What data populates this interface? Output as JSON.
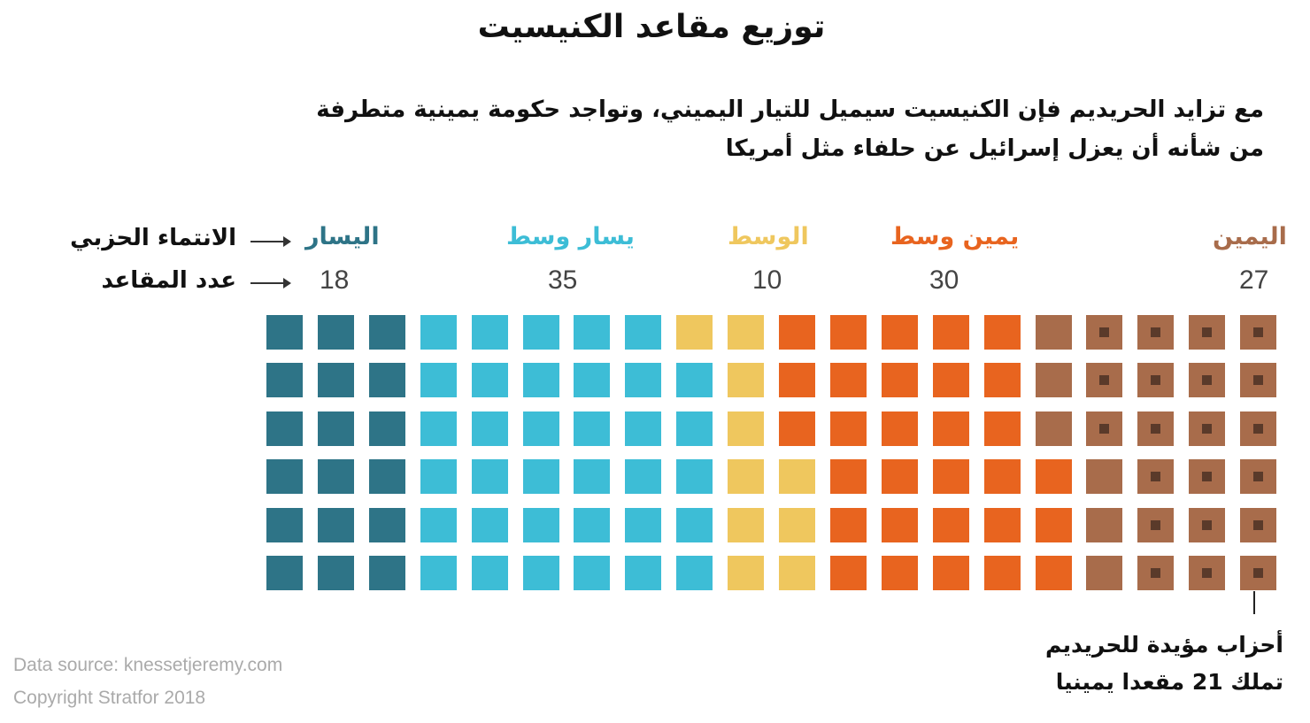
{
  "title": "توزيع مقاعد الكنيسيت",
  "subtitle": {
    "line1": "مع تزايد الحريديم فإن الكنيسيت سيميل للتيار اليميني، وتواجد حكومة يمينية متطرفة",
    "line2": "من شأنه أن يعزل إسرائيل عن حلفاء مثل أمريكا"
  },
  "row_labels": {
    "affiliation": "الانتماء الحزبي",
    "seats": "عدد المقاعد"
  },
  "note": {
    "line1": "أحزاب مؤيدة للحريديم",
    "line2": "تملك 21 مقعدا يمينيا"
  },
  "footer": {
    "source": "Data source: knessetjeremy.com",
    "copyright": "Copyright Stratfor 2018"
  },
  "chart_data": {
    "type": "waffle",
    "rows": 6,
    "columns": 20,
    "total_seats": 120,
    "fill_order": "column-major, left to right, bottom to top",
    "series": [
      {
        "name": "اليسار",
        "seats": 18,
        "count_label": "18",
        "color": "#2e7487"
      },
      {
        "name": "يسار وسط",
        "seats": 35,
        "count_label": "35",
        "color": "#3dbdd6"
      },
      {
        "name": "الوسط",
        "seats": 10,
        "count_label": "10",
        "color": "#efc75e"
      },
      {
        "name": "يمين وسط",
        "seats": 30,
        "count_label": "30",
        "color": "#e8641f"
      },
      {
        "name": "اليمين",
        "seats": 27,
        "count_label": "27",
        "color": "#a86c4b"
      }
    ],
    "haredi_supporting_seats": 21,
    "haredi_marker_color": "#5a3a2a"
  }
}
